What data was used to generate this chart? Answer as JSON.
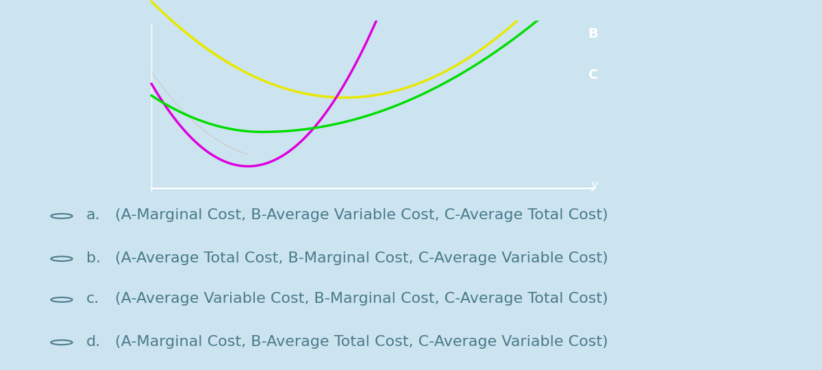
{
  "bg_outer": "#c8dce8",
  "bg_light_blue": "#cce4f0",
  "bg_nav_bar": "#e8e8e8",
  "chart_bg": "#000000",
  "curve_yellow_color": "#e8e800",
  "curve_magenta_color": "#dd00dd",
  "curve_green_color": "#00dd00",
  "curve_white_color": "#cccccc",
  "label_B_color": "#ffffff",
  "label_C_color": "#ffffff",
  "label_y_color": "#ffffff",
  "options": [
    "(A-Marginal Cost, B-Average Variable Cost, C-Average Total Cost)",
    "(A-Average Total Cost, B-Marginal Cost, C-Average Variable Cost)",
    "(A-Average Variable Cost, B-Marginal Cost, C-Average Total Cost)",
    "(A-Marginal Cost, B-Average Total Cost, C-Average Variable Cost)"
  ],
  "option_letters": [
    "a.",
    "b.",
    "c.",
    "d."
  ],
  "option_fontsize": 16,
  "text_color": "#4a7a8a"
}
